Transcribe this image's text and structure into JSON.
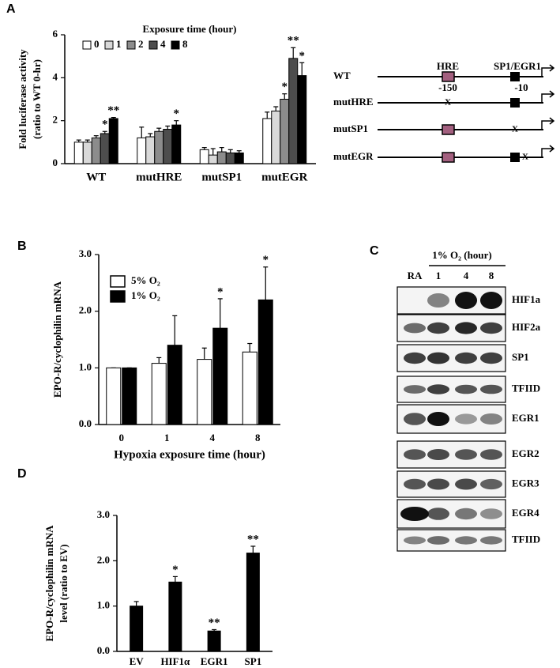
{
  "chart_data": [
    {
      "type": "bar",
      "panel": "A",
      "legend_title": "Exposure time (hour)",
      "ylabel": [
        "Fold luciferase activity",
        "(ratio to WT 0-hr)"
      ],
      "categories": [
        "WT",
        "mutHRE",
        "mutSP1",
        "mutEGR"
      ],
      "series": [
        {
          "name": "0",
          "color": "#ffffff",
          "values": [
            1.0,
            1.2,
            0.65,
            2.1
          ],
          "errors": [
            0.1,
            0.5,
            0.1,
            0.3
          ],
          "significance": [
            null,
            null,
            null,
            null
          ]
        },
        {
          "name": "1",
          "color": "#d9d9d9",
          "values": [
            1.0,
            1.25,
            0.4,
            2.45
          ],
          "errors": [
            0.1,
            0.15,
            0.3,
            0.2
          ],
          "significance": [
            null,
            null,
            null,
            null
          ]
        },
        {
          "name": "2",
          "color": "#8c8c8c",
          "values": [
            1.2,
            1.5,
            0.55,
            3.0
          ],
          "errors": [
            0.1,
            0.15,
            0.2,
            0.25
          ],
          "significance": [
            null,
            null,
            null,
            "*"
          ]
        },
        {
          "name": "4",
          "color": "#4d4d4d",
          "values": [
            1.4,
            1.6,
            0.5,
            4.9
          ],
          "errors": [
            0.1,
            0.15,
            0.15,
            0.5
          ],
          "significance": [
            "*",
            null,
            null,
            "**"
          ]
        },
        {
          "name": "8",
          "color": "#000000",
          "values": [
            2.1,
            1.8,
            0.5,
            4.1
          ],
          "errors": [
            0.05,
            0.2,
            0.1,
            0.6
          ],
          "significance": [
            "**",
            "*",
            null,
            "*"
          ]
        }
      ],
      "ylim": [
        0,
        6
      ],
      "yticks": [
        0,
        2,
        4,
        6
      ]
    },
    {
      "type": "bar",
      "panel": "B",
      "ylabel": [
        "EPO-R/cyclophilin mRNA"
      ],
      "xlabel": "Hypoxia exposure time (hour)",
      "categories": [
        "0",
        "1",
        "4",
        "8"
      ],
      "series": [
        {
          "name": "5% O₂",
          "color": "#ffffff",
          "values": [
            1.0,
            1.08,
            1.15,
            1.28
          ],
          "errors": [
            0,
            0.1,
            0.2,
            0.15
          ],
          "significance": [
            null,
            null,
            null,
            null
          ]
        },
        {
          "name": "1% O₂",
          "color": "#000000",
          "values": [
            1.0,
            1.4,
            1.7,
            2.2
          ],
          "errors": [
            0,
            0.52,
            0.52,
            0.58
          ],
          "significance": [
            null,
            null,
            "*",
            "*"
          ]
        }
      ],
      "ylim": [
        0,
        3
      ],
      "yticks": [
        {
          "value": 0,
          "label": "0.0"
        },
        {
          "value": 1,
          "label": "1.0"
        },
        {
          "value": 2,
          "label": "2.0"
        },
        {
          "value": 3,
          "label": "3.0"
        }
      ]
    },
    {
      "type": "bar",
      "panel": "D",
      "ylabel": [
        "EPO-R/cyclophilin mRNA",
        "level (ratio to EV)"
      ],
      "categories": [
        "EV",
        "HIF1α",
        "EGR1",
        "SP1"
      ],
      "color": "#000000",
      "values": [
        1.0,
        1.53,
        0.45,
        2.17
      ],
      "errors": [
        0.1,
        0.12,
        0.03,
        0.15
      ],
      "significance": [
        null,
        "*",
        "**",
        "**"
      ],
      "ylim": [
        0,
        3
      ],
      "yticks": [
        {
          "value": 0,
          "label": "0.0"
        },
        {
          "value": 1,
          "label": "1.0"
        },
        {
          "value": 2,
          "label": "2.0"
        },
        {
          "value": 3,
          "label": "3.0"
        }
      ]
    }
  ],
  "diagram": {
    "rows": [
      "WT",
      "mutHRE",
      "mutSP1",
      "mutEGR"
    ],
    "hre": "HRE",
    "sp1": "SP1/EGR1",
    "pos1": "-150",
    "pos2": "-10",
    "mutation": "X"
  },
  "blot": {
    "panel": "C",
    "header": "1% O₂ (hour)",
    "lanes": [
      "RA",
      "1",
      "4",
      "8"
    ],
    "rows": [
      "HIF1a",
      "HIF2a",
      "SP1",
      "TFIID",
      "EGR1",
      "EGR2",
      "EGR3",
      "EGR4",
      "TFIID"
    ]
  }
}
